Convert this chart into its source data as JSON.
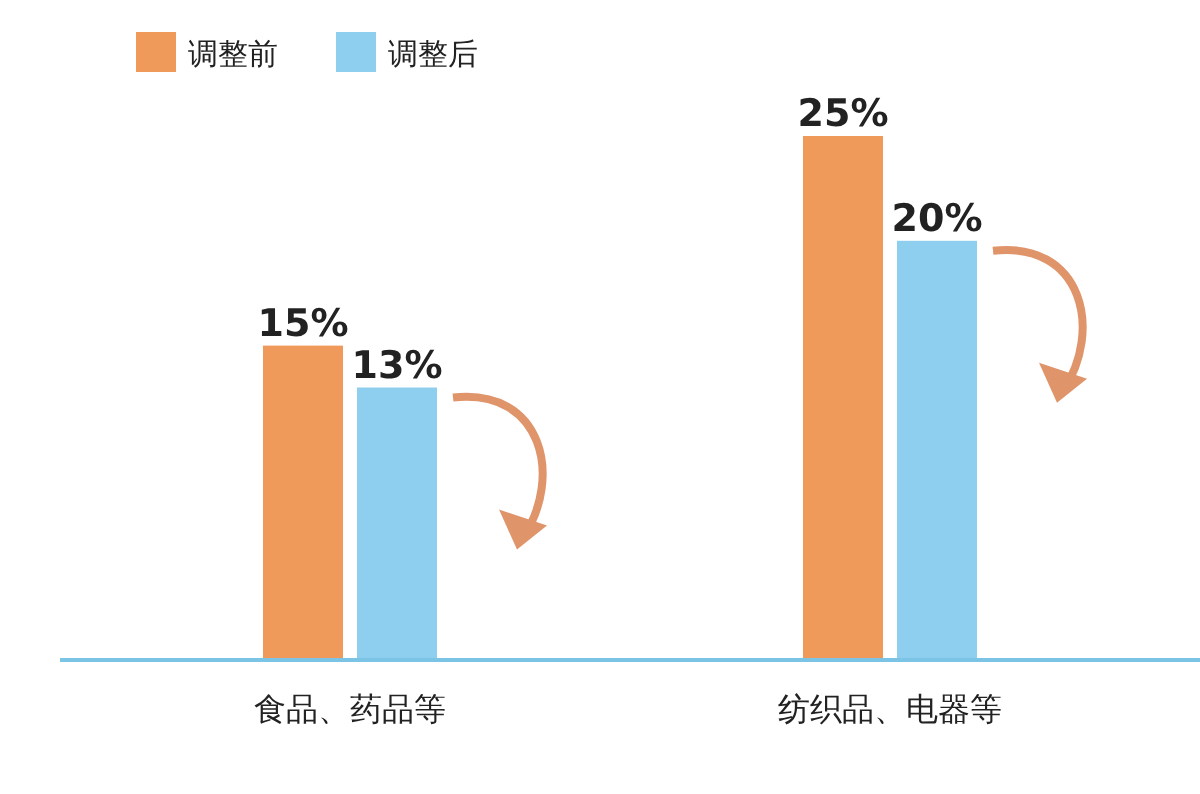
{
  "chart_data": {
    "type": "bar",
    "categories": [
      "食品、药品等",
      "纺织品、电器等"
    ],
    "series": [
      {
        "name": "调整前",
        "color": "#ef9a5a",
        "values": [
          15,
          25
        ],
        "value_labels": [
          "15%",
          "25%"
        ]
      },
      {
        "name": "调整后",
        "color": "#8ecff0",
        "values": [
          13,
          20
        ],
        "value_labels": [
          "13%",
          "20%"
        ]
      }
    ],
    "legend": "top left"
  }
}
